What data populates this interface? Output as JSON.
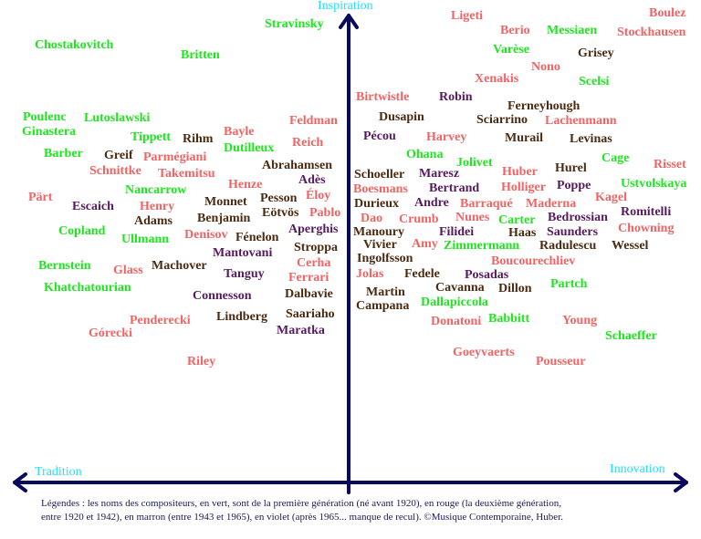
{
  "axes": {
    "top_label": "Inspiration",
    "left_label": "Tradition",
    "right_label": "Innovation",
    "label_color": "#22e0f0",
    "axis_color": "#0a0a5c"
  },
  "generation_colors": {
    "first": "#1ee61e",
    "second": "#f06464",
    "third": "#4a2a10",
    "fourth": "#561a5e"
  },
  "composers": [
    {
      "name": "Stravinsky",
      "gen": "first"
    },
    {
      "name": "Chostakovitch",
      "gen": "first"
    },
    {
      "name": "Britten",
      "gen": "first"
    },
    {
      "name": "Poulenc",
      "gen": "first"
    },
    {
      "name": "Lutoslawski",
      "gen": "first"
    },
    {
      "name": "Ginastera",
      "gen": "first"
    },
    {
      "name": "Tippett",
      "gen": "first"
    },
    {
      "name": "Rihm",
      "gen": "third"
    },
    {
      "name": "Bayle",
      "gen": "second"
    },
    {
      "name": "Feldman",
      "gen": "second"
    },
    {
      "name": "Dutilleux",
      "gen": "first"
    },
    {
      "name": "Reich",
      "gen": "second"
    },
    {
      "name": "Barber",
      "gen": "first"
    },
    {
      "name": "Greif",
      "gen": "third"
    },
    {
      "name": "Parmégiani",
      "gen": "second"
    },
    {
      "name": "Schnittke",
      "gen": "second"
    },
    {
      "name": "Takemitsu",
      "gen": "second"
    },
    {
      "name": "Abrahamsen",
      "gen": "third"
    },
    {
      "name": "Adès",
      "gen": "fourth"
    },
    {
      "name": "Henze",
      "gen": "second"
    },
    {
      "name": "Nancarrow",
      "gen": "first"
    },
    {
      "name": "Pärt",
      "gen": "second"
    },
    {
      "name": "Escaich",
      "gen": "fourth"
    },
    {
      "name": "Henry",
      "gen": "second"
    },
    {
      "name": "Monnet",
      "gen": "third"
    },
    {
      "name": "Pesson",
      "gen": "third"
    },
    {
      "name": "Éloy",
      "gen": "second"
    },
    {
      "name": "Adams",
      "gen": "third"
    },
    {
      "name": "Benjamin",
      "gen": "third"
    },
    {
      "name": "Eötvös",
      "gen": "third"
    },
    {
      "name": "Pablo",
      "gen": "second"
    },
    {
      "name": "Copland",
      "gen": "first"
    },
    {
      "name": "Ullmann",
      "gen": "first"
    },
    {
      "name": "Denisov",
      "gen": "second"
    },
    {
      "name": "Fénelon",
      "gen": "third"
    },
    {
      "name": "Aperghis",
      "gen": "fourth"
    },
    {
      "name": "Mantovani",
      "gen": "fourth"
    },
    {
      "name": "Stroppa",
      "gen": "third"
    },
    {
      "name": "Bernstein",
      "gen": "first"
    },
    {
      "name": "Glass",
      "gen": "second"
    },
    {
      "name": "Machover",
      "gen": "third"
    },
    {
      "name": "Tanguy",
      "gen": "fourth"
    },
    {
      "name": "Cerha",
      "gen": "second"
    },
    {
      "name": "Ferrari",
      "gen": "second"
    },
    {
      "name": "Khatchatourian",
      "gen": "first"
    },
    {
      "name": "Connesson",
      "gen": "fourth"
    },
    {
      "name": "Dalbavie",
      "gen": "third"
    },
    {
      "name": "Penderecki",
      "gen": "second"
    },
    {
      "name": "Lindberg",
      "gen": "third"
    },
    {
      "name": "Saariaho",
      "gen": "third"
    },
    {
      "name": "Górecki",
      "gen": "second"
    },
    {
      "name": "Maratka",
      "gen": "fourth"
    },
    {
      "name": "Riley",
      "gen": "second"
    },
    {
      "name": "Ligeti",
      "gen": "second"
    },
    {
      "name": "Berio",
      "gen": "second"
    },
    {
      "name": "Messiaen",
      "gen": "first"
    },
    {
      "name": "Boulez",
      "gen": "second"
    },
    {
      "name": "Stockhausen",
      "gen": "second"
    },
    {
      "name": "Varèse",
      "gen": "first"
    },
    {
      "name": "Grisey",
      "gen": "third"
    },
    {
      "name": "Nono",
      "gen": "second"
    },
    {
      "name": "Xenakis",
      "gen": "second"
    },
    {
      "name": "Scelsi",
      "gen": "first"
    },
    {
      "name": "Birtwistle",
      "gen": "second"
    },
    {
      "name": "Robin",
      "gen": "fourth"
    },
    {
      "name": "Ferneyhough",
      "gen": "third"
    },
    {
      "name": "Dusapin",
      "gen": "third"
    },
    {
      "name": "Sciarrino",
      "gen": "third"
    },
    {
      "name": "Lachenmann",
      "gen": "second"
    },
    {
      "name": "Pécou",
      "gen": "fourth"
    },
    {
      "name": "Harvey",
      "gen": "second"
    },
    {
      "name": "Murail",
      "gen": "third"
    },
    {
      "name": "Levinas",
      "gen": "third"
    },
    {
      "name": "Ohana",
      "gen": "first"
    },
    {
      "name": "Jolivet",
      "gen": "first"
    },
    {
      "name": "Cage",
      "gen": "first"
    },
    {
      "name": "Risset",
      "gen": "second"
    },
    {
      "name": "Hurel",
      "gen": "third"
    },
    {
      "name": "Huber",
      "gen": "second"
    },
    {
      "name": "Schoeller",
      "gen": "third"
    },
    {
      "name": "Maresz",
      "gen": "fourth"
    },
    {
      "name": "Boesmans",
      "gen": "second"
    },
    {
      "name": "Bertrand",
      "gen": "fourth"
    },
    {
      "name": "Holliger",
      "gen": "second"
    },
    {
      "name": "Poppe",
      "gen": "fourth"
    },
    {
      "name": "Ustvolskaya",
      "gen": "first"
    },
    {
      "name": "Kagel",
      "gen": "second"
    },
    {
      "name": "Durieux",
      "gen": "third"
    },
    {
      "name": "Andre",
      "gen": "fourth"
    },
    {
      "name": "Barraqué",
      "gen": "second"
    },
    {
      "name": "Maderna",
      "gen": "second"
    },
    {
      "name": "Dao",
      "gen": "second"
    },
    {
      "name": "Crumb",
      "gen": "second"
    },
    {
      "name": "Nunes",
      "gen": "second"
    },
    {
      "name": "Carter",
      "gen": "first"
    },
    {
      "name": "Bedrossian",
      "gen": "fourth"
    },
    {
      "name": "Romitelli",
      "gen": "fourth"
    },
    {
      "name": "Manoury",
      "gen": "third"
    },
    {
      "name": "Filidei",
      "gen": "fourth"
    },
    {
      "name": "Haas",
      "gen": "third"
    },
    {
      "name": "Saunders",
      "gen": "fourth"
    },
    {
      "name": "Chowning",
      "gen": "second"
    },
    {
      "name": "Vivier",
      "gen": "third"
    },
    {
      "name": "Amy",
      "gen": "second"
    },
    {
      "name": "Zimmermann",
      "gen": "first"
    },
    {
      "name": "Radulescu",
      "gen": "third"
    },
    {
      "name": "Wessel",
      "gen": "third"
    },
    {
      "name": "Ingolfsson",
      "gen": "third"
    },
    {
      "name": "Boucourechliev",
      "gen": "second"
    },
    {
      "name": "Jolas",
      "gen": "second"
    },
    {
      "name": "Fedele",
      "gen": "third"
    },
    {
      "name": "Posadas",
      "gen": "fourth"
    },
    {
      "name": "Partch",
      "gen": "first"
    },
    {
      "name": "Martin",
      "gen": "third"
    },
    {
      "name": "Cavanna",
      "gen": "third"
    },
    {
      "name": "Dillon",
      "gen": "third"
    },
    {
      "name": "Campana",
      "gen": "third"
    },
    {
      "name": "Dallapiccola",
      "gen": "first"
    },
    {
      "name": "Donatoni",
      "gen": "second"
    },
    {
      "name": "Babbitt",
      "gen": "first"
    },
    {
      "name": "Young",
      "gen": "second"
    },
    {
      "name": "Schaeffer",
      "gen": "first"
    },
    {
      "name": "Goeyvaerts",
      "gen": "second"
    },
    {
      "name": "Pousseur",
      "gen": "second"
    }
  ],
  "legend": {
    "line1": "Légendes : les noms des compositeurs, en vert, sont de la première génération (né avant 1920), en rouge (la deuxième génération,",
    "line2": "entre 1920 et 1942), en marron (entre 1943 et 1965), en violet (après 1965... manque de recul). ©Musique Contemporaine, Huber.",
    "color": "#1a1a5a"
  }
}
